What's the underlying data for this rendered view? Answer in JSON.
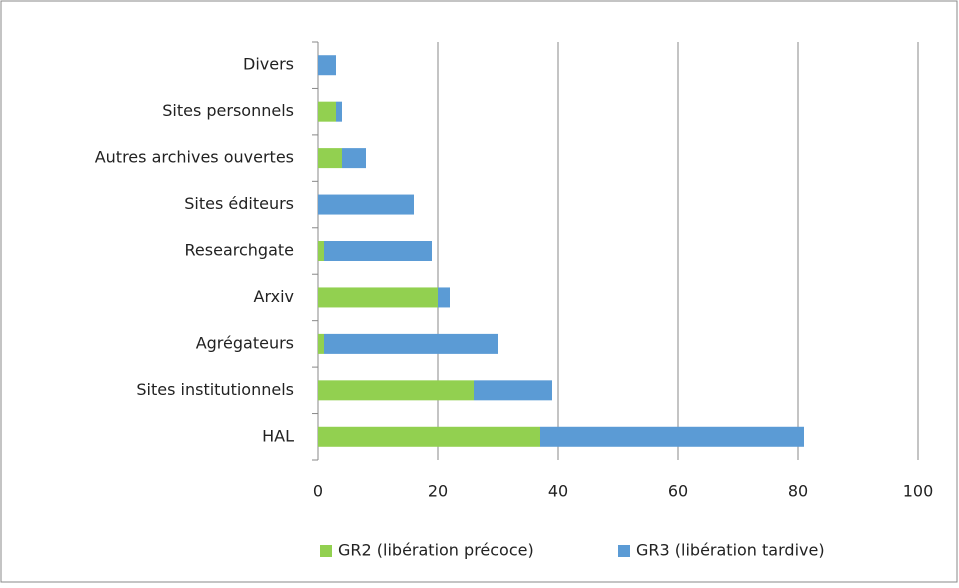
{
  "chart_data": {
    "type": "stacked-barh",
    "categories": [
      "Divers",
      "Sites personnels",
      "Autres archives ouvertes",
      "Sites éditeurs",
      "Researchgate",
      "Arxiv",
      "Agrégateurs",
      "Sites institutionnels",
      "HAL"
    ],
    "series": [
      {
        "name": "GR2 (libération précoce)",
        "color": "#92d050",
        "values": [
          0,
          3,
          4,
          0,
          1,
          20,
          1,
          26,
          37
        ]
      },
      {
        "name": "GR3 (libération tardive)",
        "color": "#5b9bd5",
        "values": [
          3,
          1,
          4,
          16,
          18,
          2,
          29,
          13,
          44
        ]
      }
    ],
    "xlim": [
      0,
      100
    ],
    "xticks": [
      0,
      20,
      40,
      60,
      80,
      100
    ],
    "grid": true,
    "legend": "bottom"
  }
}
